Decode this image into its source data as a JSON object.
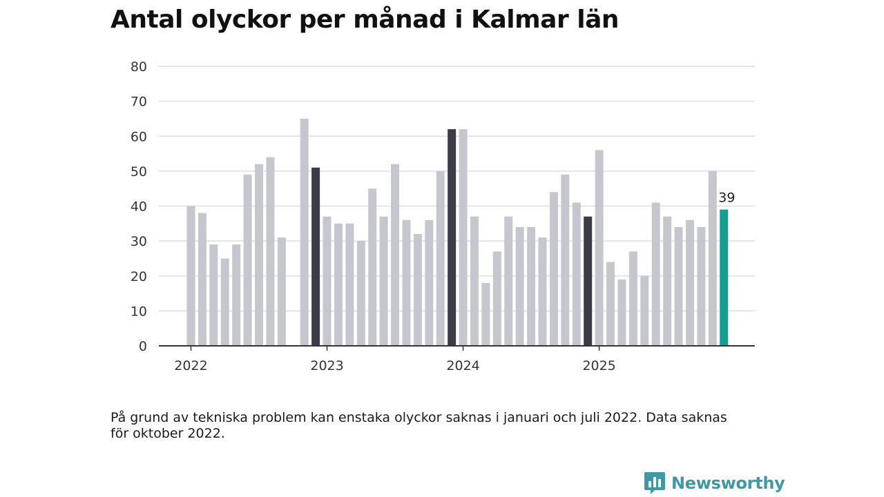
{
  "title": "Antal olyckor per månad i Kalmar län",
  "footnote": "På grund av tekniska problem kan enstaka olyckor saknas i januari och juli 2022. Data saknas för oktober 2022.",
  "brand": {
    "name": "Newsworthy",
    "color": "#3d9aa5"
  },
  "colors": {
    "default_bar": "#c6c6ce",
    "december_bar": "#3c3b48",
    "latest_bar": "#139e94",
    "grid": "#dddddd",
    "axis": "#333333"
  },
  "chart_data": {
    "type": "bar",
    "title": "Antal olyckor per månad i Kalmar län",
    "xlabel": "",
    "ylabel": "",
    "ylim": [
      0,
      80
    ],
    "yticks": [
      0,
      10,
      20,
      30,
      40,
      50,
      60,
      70,
      80
    ],
    "grid": true,
    "start_month": "2022-01",
    "year_ticks": [
      {
        "label": "2022",
        "index": 0
      },
      {
        "label": "2023",
        "index": 12
      },
      {
        "label": "2024",
        "index": 24
      },
      {
        "label": "2025",
        "index": 36
      }
    ],
    "values": [
      40,
      38,
      29,
      25,
      29,
      49,
      52,
      54,
      31,
      null,
      65,
      51,
      37,
      35,
      35,
      30,
      45,
      37,
      52,
      36,
      32,
      36,
      50,
      62,
      62,
      37,
      18,
      27,
      37,
      34,
      34,
      31,
      44,
      49,
      41,
      37,
      56,
      24,
      19,
      27,
      20,
      41,
      37,
      34,
      36,
      34,
      50,
      39
    ],
    "highlight_december": [
      11,
      23,
      35
    ],
    "highlight_latest": 47,
    "data_labels": [
      {
        "index": 47,
        "text": "39"
      }
    ]
  }
}
